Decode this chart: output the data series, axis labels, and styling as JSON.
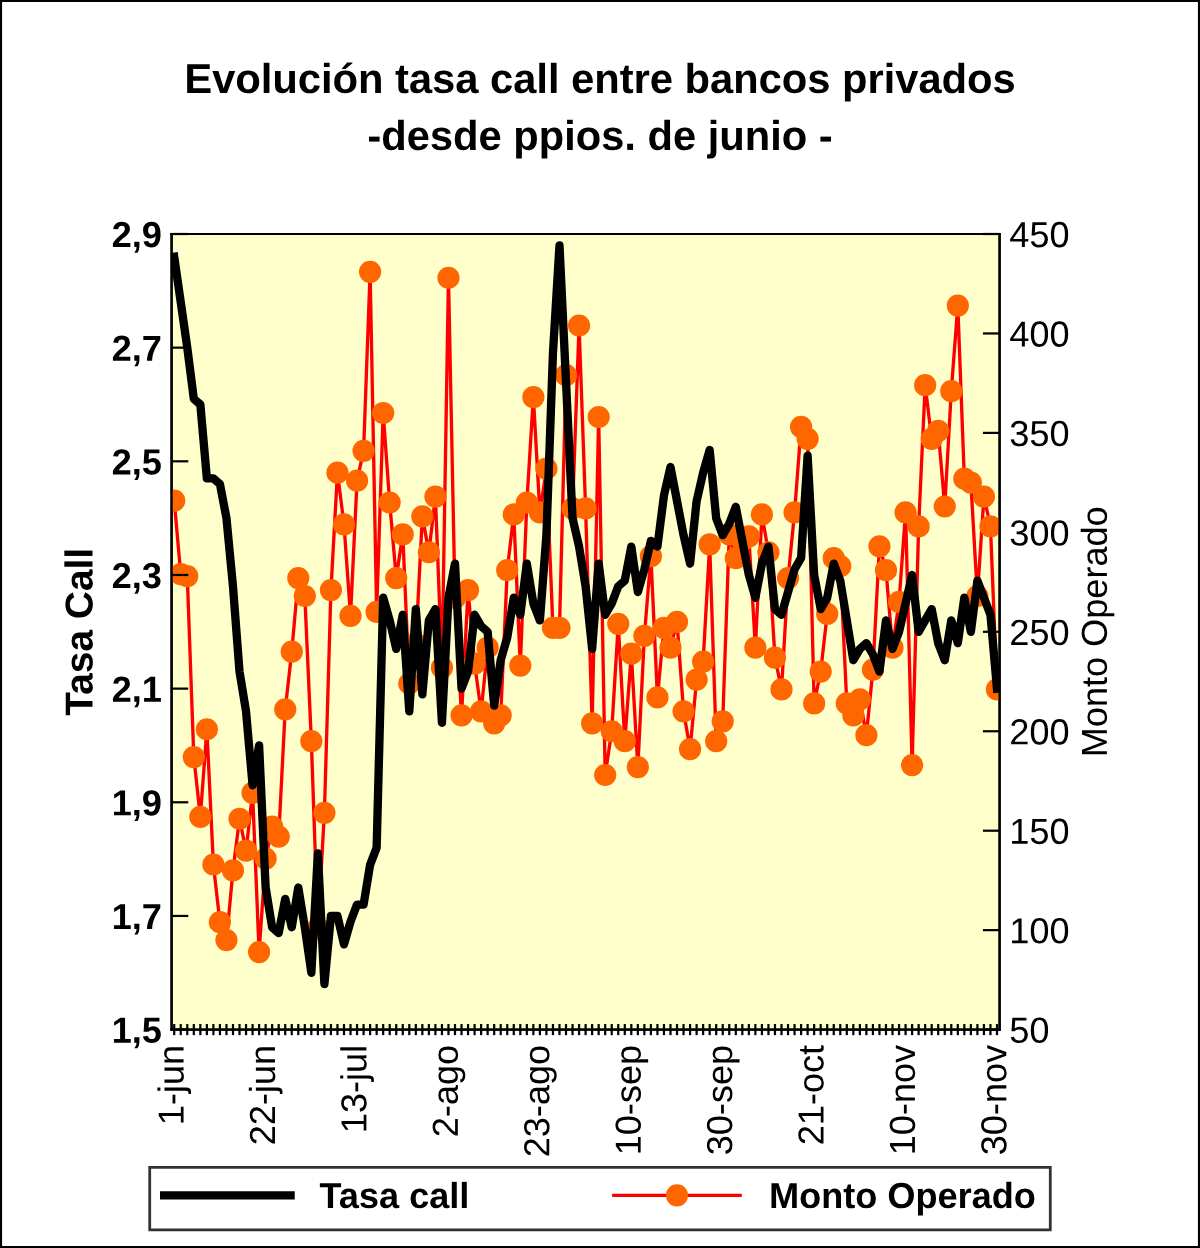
{
  "chart_data": {
    "type": "line",
    "title": "Evolución tasa call entre bancos privados\n-desde ppios. de junio -",
    "ylabel": "Tasa Call",
    "y2label": "Monto Operado",
    "categories": [
      "1-jun",
      null,
      null,
      null,
      null,
      null,
      null,
      null,
      null,
      null,
      null,
      null,
      null,
      null,
      "22-jun",
      null,
      null,
      null,
      null,
      null,
      null,
      null,
      null,
      null,
      null,
      null,
      null,
      null,
      "13-jul",
      null,
      null,
      null,
      null,
      null,
      null,
      null,
      null,
      null,
      null,
      null,
      null,
      null,
      "2-ago",
      null,
      null,
      null,
      null,
      null,
      null,
      null,
      null,
      null,
      null,
      null,
      null,
      null,
      "23-ago",
      null,
      null,
      null,
      null,
      null,
      null,
      null,
      null,
      null,
      null,
      null,
      null,
      null,
      "10-sep",
      null,
      null,
      null,
      null,
      null,
      null,
      null,
      null,
      null,
      null,
      null,
      null,
      null,
      "30-sep",
      null,
      null,
      null,
      null,
      null,
      null,
      null,
      null,
      null,
      null,
      null,
      null,
      null,
      "21-oct",
      null,
      null,
      null,
      null,
      null,
      null,
      null,
      null,
      null,
      null,
      null,
      null,
      null,
      "10-nov",
      null,
      null,
      null,
      null,
      null,
      null,
      null,
      null,
      null,
      null,
      null,
      null,
      null,
      "30-nov"
    ],
    "series": [
      {
        "name": "Tasa call",
        "color": "#000000",
        "marker": "none",
        "values": [
          2.86,
          2.78,
          2.7,
          2.61,
          2.6,
          2.47,
          2.47,
          2.46,
          2.4,
          2.28,
          2.13,
          2.06,
          1.93,
          2.0,
          1.75,
          1.68,
          1.67,
          1.73,
          1.68,
          1.75,
          1.68,
          1.6,
          1.81,
          1.58,
          1.7,
          1.7,
          1.65,
          1.69,
          1.72,
          1.72,
          1.79,
          1.82,
          2.26,
          2.22,
          2.17,
          2.23,
          2.06,
          2.24,
          2.09,
          2.22,
          2.24,
          2.04,
          2.26,
          2.32,
          2.1,
          2.13,
          2.23,
          2.21,
          2.2,
          2.07,
          2.15,
          2.19,
          2.26,
          2.23,
          2.32,
          2.25,
          2.22,
          2.37,
          2.69,
          2.88,
          2.64,
          2.4,
          2.35,
          2.28,
          2.17,
          2.32,
          2.23,
          2.25,
          2.28,
          2.29,
          2.35,
          2.27,
          2.31,
          2.36,
          2.35,
          2.44,
          2.49,
          2.43,
          2.37,
          2.32,
          2.43,
          2.48,
          2.52,
          2.4,
          2.37,
          2.39,
          2.42,
          2.36,
          2.3,
          2.26,
          2.32,
          2.35,
          2.24,
          2.23,
          2.27,
          2.31,
          2.33,
          2.51,
          2.3,
          2.24,
          2.26,
          2.32,
          2.29,
          2.22,
          2.15,
          2.17,
          2.18,
          2.16,
          2.13,
          2.22,
          2.17,
          2.2,
          2.25,
          2.3,
          2.2,
          2.22,
          2.24,
          2.18,
          2.15,
          2.22,
          2.18,
          2.26,
          2.2,
          2.29,
          2.26,
          2.23,
          2.1
        ]
      },
      {
        "name": "Monto Operado",
        "color": "#ff0000",
        "axis": "y2",
        "marker": "circle",
        "values": [
          316,
          279,
          278,
          187,
          157,
          201,
          133,
          104,
          95,
          130,
          156,
          140,
          169,
          89,
          136,
          152,
          147,
          211,
          240,
          277,
          268,
          195,
          101,
          159,
          271,
          330,
          304,
          258,
          326,
          341,
          431,
          260,
          360,
          315,
          277,
          299,
          224,
          244,
          308,
          290,
          318,
          232,
          428,
          267,
          208,
          271,
          234,
          210,
          242,
          204,
          208,
          281,
          309,
          233,
          315,
          368,
          310,
          332,
          252,
          252,
          379,
          312,
          404,
          312,
          204,
          358,
          178,
          200,
          254,
          195,
          239,
          182,
          248,
          288,
          217,
          252,
          242,
          255,
          210,
          191,
          226,
          235,
          294,
          195,
          205,
          299,
          287,
          296,
          298,
          242,
          309,
          290,
          237,
          221,
          277,
          310,
          353,
          347,
          214,
          230,
          259,
          287,
          283,
          214,
          208,
          216,
          198,
          231,
          293,
          281,
          242,
          265,
          310,
          183,
          303,
          374,
          347,
          351,
          313,
          371,
          414,
          327,
          325,
          268,
          318,
          303,
          221
        ]
      }
    ],
    "ylim": [
      1.5,
      2.9
    ],
    "yticks": [
      {
        "value": 1.5,
        "label": "1,5"
      },
      {
        "value": 1.7,
        "label": "1,7"
      },
      {
        "value": 1.9,
        "label": "1,9"
      },
      {
        "value": 2.1,
        "label": "2,1"
      },
      {
        "value": 2.3,
        "label": "2,3"
      },
      {
        "value": 2.5,
        "label": "2,5"
      },
      {
        "value": 2.7,
        "label": "2,7"
      },
      {
        "value": 2.9,
        "label": "2,9"
      }
    ],
    "y2lim": [
      50,
      450
    ],
    "y2ticks": [
      50,
      100,
      150,
      200,
      250,
      300,
      350,
      400,
      450
    ],
    "grid": false,
    "legend": "bottom"
  }
}
